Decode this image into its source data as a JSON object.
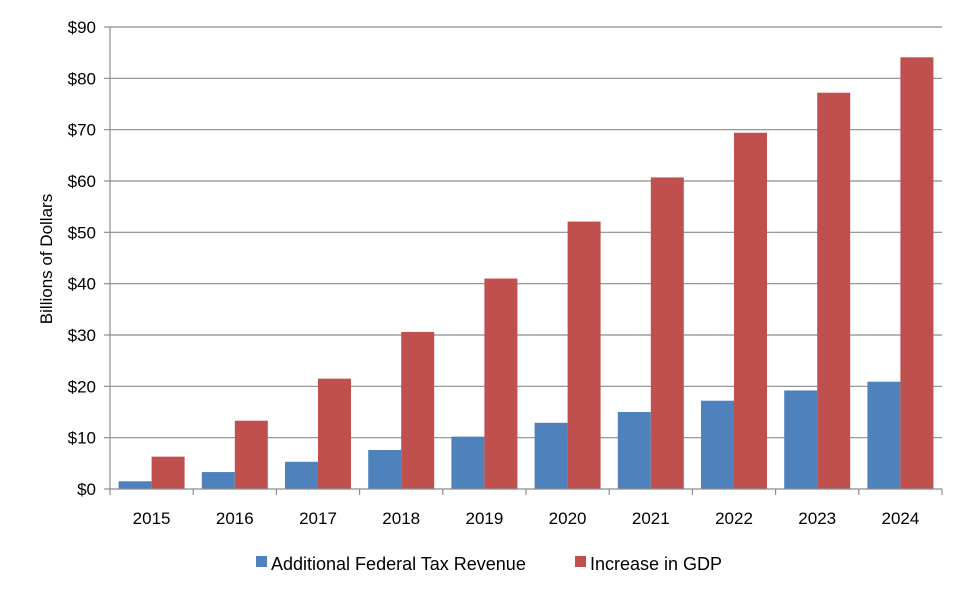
{
  "chart_data": {
    "type": "bar",
    "title": "",
    "xlabel": "",
    "ylabel": "Billions of Dollars",
    "ylim": [
      0,
      90
    ],
    "y_ticks": [
      0,
      10,
      20,
      30,
      40,
      50,
      60,
      70,
      80,
      90
    ],
    "y_tick_labels": [
      "$0",
      "$10",
      "$20",
      "$30",
      "$40",
      "$50",
      "$60",
      "$70",
      "$80",
      "$90"
    ],
    "grid": true,
    "legend_position": "bottom",
    "categories": [
      "2015",
      "2016",
      "2017",
      "2018",
      "2019",
      "2020",
      "2021",
      "2022",
      "2023",
      "2024"
    ],
    "series": [
      {
        "name": "Additional Federal Tax Revenue",
        "color": "#4f81bd",
        "values": [
          1.5,
          3.3,
          5.3,
          7.6,
          10.2,
          12.9,
          15.0,
          17.2,
          19.2,
          20.9
        ]
      },
      {
        "name": "Increase in GDP",
        "color": "#c0504d",
        "values": [
          6.3,
          13.3,
          21.5,
          30.6,
          41.0,
          52.1,
          60.7,
          69.4,
          77.2,
          84.1
        ]
      }
    ]
  }
}
